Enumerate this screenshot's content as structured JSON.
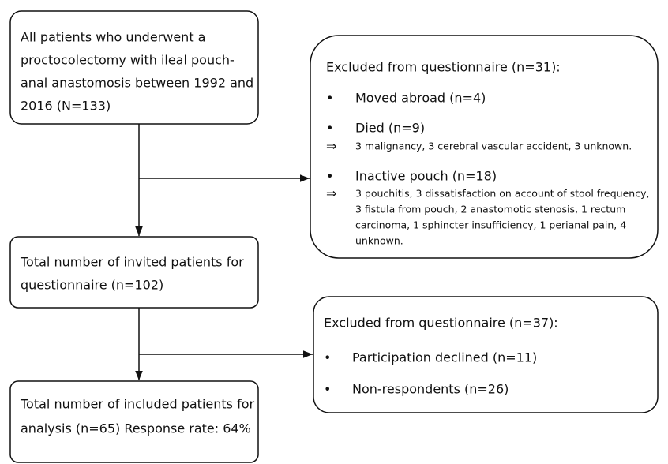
{
  "nodes": [
    {
      "lines": [
        "All patients who underwent a",
        "proctocolectomy with ileal pouch-",
        "anal anastomosis between 1992 and",
        "2016 (N=133)"
      ]
    },
    {
      "title": "Excluded from questionnaire (n=31):",
      "items": [
        {
          "label": "Moved abroad (n=4)",
          "details": []
        },
        {
          "label": "Died (n=9)",
          "details": [
            "3 malignancy, 3 cerebral vascular accident, 3 unknown."
          ]
        },
        {
          "label": "Inactive pouch (n=18)",
          "details": [
            "3 pouchitis, 3 dissatisfaction on account of stool frequency,",
            "3 fistula from pouch, 2 anastomotic stenosis, 1 rectum",
            "carcinoma, 1 sphincter insufficiency, 1 perianal pain, 4",
            "unknown."
          ]
        }
      ]
    },
    {
      "lines": [
        "Total number of invited patients for",
        "questionnaire (n=102)"
      ]
    },
    {
      "title": "Excluded from questionnaire (n=37):",
      "items": [
        {
          "label": "Participation declined (n=11)",
          "details": []
        },
        {
          "label": "Non-respondents (n=26)",
          "details": []
        }
      ]
    },
    {
      "lines": [
        "Total number of included patients for",
        "analysis (n=65) Response rate: 64%"
      ]
    }
  ]
}
